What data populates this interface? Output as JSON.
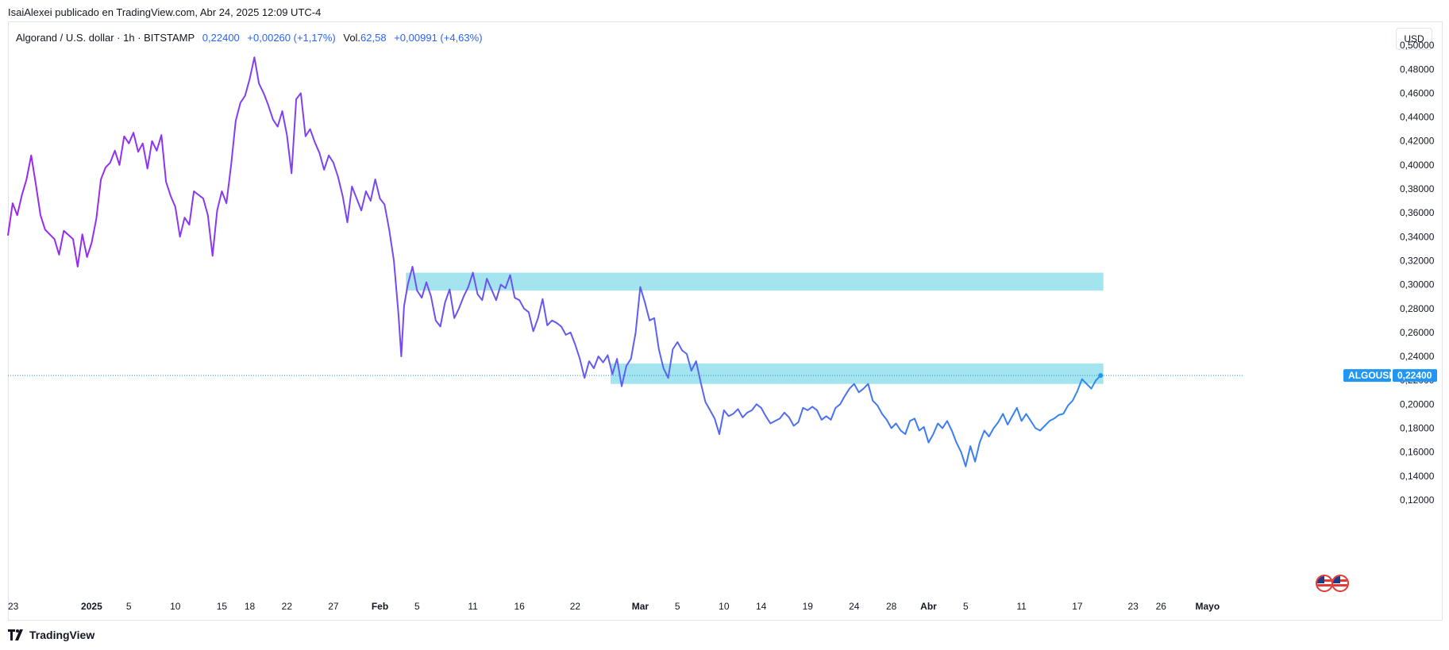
{
  "caption": "IsaiAlexei publicado en TradingView.com, Abr 24, 2025 12:09 UTC-4",
  "legend": {
    "symbol": "Algorand / U.S. dollar · 1h · BITSTAMP",
    "last": "0,22400",
    "change": "+0,00260 (+1,17%)",
    "vol_label": "Vol.",
    "vol_value": "62,58",
    "vol_change": "+0,00991 (+4,63%)"
  },
  "currency_button": "USD",
  "price_tag": {
    "symbol": "ALGOUSD",
    "value": "0,22400"
  },
  "branding": "TradingView",
  "colors": {
    "zone": "#a3e4ef",
    "line_start": "#9c27f0",
    "line_end": "#2196f3",
    "tag": "#2196f3"
  },
  "chart_data": {
    "type": "line",
    "symbol": "ALGOUSD",
    "interval": "1h",
    "ylim": [
      0.11,
      0.52
    ],
    "y_ticks": [
      0.12,
      0.14,
      0.16,
      0.18,
      0.2,
      0.22,
      0.24,
      0.26,
      0.28,
      0.3,
      0.32,
      0.34,
      0.36,
      0.38,
      0.4,
      0.42,
      0.44,
      0.46,
      0.48,
      0.5
    ],
    "y_tick_labels": [
      "0,12000",
      "0,14000",
      "0,16000",
      "0,18000",
      "0,20000",
      "0,22000",
      "0,24000",
      "0,26000",
      "0,28000",
      "0,30000",
      "0,32000",
      "0,34000",
      "0,36000",
      "0,38000",
      "0,40000",
      "0,42000",
      "0,44000",
      "0,46000",
      "0,48000",
      "0,50000"
    ],
    "x_tick_labels": [
      {
        "t": 0,
        "label": "23"
      },
      {
        "t": 9,
        "label": "2025",
        "bold": true
      },
      {
        "t": 13,
        "label": "5"
      },
      {
        "t": 18,
        "label": "10"
      },
      {
        "t": 23,
        "label": "15"
      },
      {
        "t": 26,
        "label": "18"
      },
      {
        "t": 30,
        "label": "22"
      },
      {
        "t": 35,
        "label": "27"
      },
      {
        "t": 40,
        "label": "Feb",
        "bold": true
      },
      {
        "t": 44,
        "label": "5"
      },
      {
        "t": 50,
        "label": "11"
      },
      {
        "t": 55,
        "label": "16"
      },
      {
        "t": 61,
        "label": "22"
      },
      {
        "t": 68,
        "label": "Mar",
        "bold": true
      },
      {
        "t": 72,
        "label": "5"
      },
      {
        "t": 77,
        "label": "10"
      },
      {
        "t": 81,
        "label": "14"
      },
      {
        "t": 86,
        "label": "19"
      },
      {
        "t": 91,
        "label": "24"
      },
      {
        "t": 95,
        "label": "28"
      },
      {
        "t": 99,
        "label": "Abr",
        "bold": true
      },
      {
        "t": 103,
        "label": "5"
      },
      {
        "t": 109,
        "label": "11"
      },
      {
        "t": 115,
        "label": "17"
      },
      {
        "t": 121,
        "label": "23"
      },
      {
        "t": 124,
        "label": "26"
      },
      {
        "t": 129,
        "label": "Mayo",
        "bold": true
      }
    ],
    "x_range": [
      0,
      132
    ],
    "series": [
      {
        "points": [
          [
            0,
            0.341
          ],
          [
            0.5,
            0.368
          ],
          [
            1,
            0.358
          ],
          [
            1.5,
            0.375
          ],
          [
            2,
            0.388
          ],
          [
            2.5,
            0.408
          ],
          [
            3,
            0.384
          ],
          [
            3.5,
            0.358
          ],
          [
            4,
            0.346
          ],
          [
            5,
            0.338
          ],
          [
            5.5,
            0.325
          ],
          [
            6,
            0.345
          ],
          [
            7,
            0.338
          ],
          [
            7.5,
            0.315
          ],
          [
            8,
            0.342
          ],
          [
            8.5,
            0.323
          ],
          [
            9,
            0.335
          ],
          [
            9.5,
            0.355
          ],
          [
            10,
            0.388
          ],
          [
            10.5,
            0.398
          ],
          [
            11,
            0.402
          ],
          [
            11.5,
            0.412
          ],
          [
            12,
            0.4
          ],
          [
            12.5,
            0.424
          ],
          [
            13,
            0.418
          ],
          [
            13.5,
            0.427
          ],
          [
            14,
            0.411
          ],
          [
            14.5,
            0.418
          ],
          [
            15,
            0.397
          ],
          [
            15.5,
            0.42
          ],
          [
            16,
            0.412
          ],
          [
            16.5,
            0.425
          ],
          [
            17,
            0.386
          ],
          [
            17.5,
            0.374
          ],
          [
            18,
            0.365
          ],
          [
            18.5,
            0.34
          ],
          [
            19,
            0.356
          ],
          [
            19.5,
            0.35
          ],
          [
            20,
            0.378
          ],
          [
            21,
            0.372
          ],
          [
            21.5,
            0.358
          ],
          [
            22,
            0.324
          ],
          [
            22.5,
            0.362
          ],
          [
            23,
            0.378
          ],
          [
            23.5,
            0.368
          ],
          [
            24,
            0.4
          ],
          [
            24.5,
            0.437
          ],
          [
            25,
            0.452
          ],
          [
            25.5,
            0.458
          ],
          [
            26,
            0.472
          ],
          [
            26.5,
            0.49
          ],
          [
            27,
            0.468
          ],
          [
            27.5,
            0.46
          ],
          [
            28,
            0.45
          ],
          [
            28.5,
            0.438
          ],
          [
            29,
            0.432
          ],
          [
            29.5,
            0.445
          ],
          [
            30,
            0.425
          ],
          [
            30.5,
            0.393
          ],
          [
            31,
            0.455
          ],
          [
            31.5,
            0.46
          ],
          [
            32,
            0.424
          ],
          [
            32.5,
            0.43
          ],
          [
            33,
            0.419
          ],
          [
            33.5,
            0.41
          ],
          [
            34,
            0.396
          ],
          [
            34.5,
            0.408
          ],
          [
            35,
            0.402
          ],
          [
            35.5,
            0.39
          ],
          [
            36,
            0.374
          ],
          [
            36.5,
            0.352
          ],
          [
            37,
            0.382
          ],
          [
            37.5,
            0.372
          ],
          [
            38,
            0.362
          ],
          [
            38.5,
            0.378
          ],
          [
            39,
            0.37
          ],
          [
            39.5,
            0.388
          ],
          [
            40,
            0.372
          ],
          [
            40.5,
            0.367
          ],
          [
            41,
            0.346
          ],
          [
            41.5,
            0.32
          ],
          [
            42,
            0.275
          ],
          [
            42.3,
            0.24
          ],
          [
            42.6,
            0.282
          ],
          [
            43,
            0.3
          ],
          [
            43.5,
            0.315
          ],
          [
            44,
            0.295
          ],
          [
            44.5,
            0.289
          ],
          [
            45,
            0.302
          ],
          [
            45.5,
            0.29
          ],
          [
            46,
            0.27
          ],
          [
            46.5,
            0.265
          ],
          [
            47,
            0.285
          ],
          [
            47.5,
            0.296
          ],
          [
            48,
            0.272
          ],
          [
            48.5,
            0.28
          ],
          [
            49,
            0.29
          ],
          [
            49.5,
            0.298
          ],
          [
            50,
            0.31
          ],
          [
            50.5,
            0.292
          ],
          [
            51,
            0.287
          ],
          [
            51.5,
            0.305
          ],
          [
            52,
            0.296
          ],
          [
            52.5,
            0.287
          ],
          [
            53,
            0.3
          ],
          [
            53.5,
            0.297
          ],
          [
            54,
            0.308
          ],
          [
            54.5,
            0.289
          ],
          [
            55,
            0.287
          ],
          [
            55.5,
            0.28
          ],
          [
            56,
            0.277
          ],
          [
            56.5,
            0.261
          ],
          [
            57,
            0.272
          ],
          [
            57.5,
            0.288
          ],
          [
            58,
            0.266
          ],
          [
            58.5,
            0.27
          ],
          [
            59,
            0.268
          ],
          [
            59.5,
            0.265
          ],
          [
            60,
            0.258
          ],
          [
            60.5,
            0.26
          ],
          [
            61,
            0.25
          ],
          [
            61.5,
            0.238
          ],
          [
            62,
            0.222
          ],
          [
            62.5,
            0.236
          ],
          [
            63,
            0.23
          ],
          [
            63.5,
            0.24
          ],
          [
            64,
            0.235
          ],
          [
            64.5,
            0.241
          ],
          [
            65,
            0.225
          ],
          [
            65.5,
            0.238
          ],
          [
            66,
            0.215
          ],
          [
            66.5,
            0.232
          ],
          [
            67,
            0.238
          ],
          [
            67.5,
            0.26
          ],
          [
            68,
            0.298
          ],
          [
            68.5,
            0.285
          ],
          [
            69,
            0.27
          ],
          [
            69.5,
            0.272
          ],
          [
            70,
            0.246
          ],
          [
            70.5,
            0.23
          ],
          [
            71,
            0.222
          ],
          [
            71.5,
            0.246
          ],
          [
            72,
            0.252
          ],
          [
            72.5,
            0.245
          ],
          [
            73,
            0.242
          ],
          [
            73.5,
            0.228
          ],
          [
            74,
            0.236
          ],
          [
            74.5,
            0.218
          ],
          [
            75,
            0.202
          ],
          [
            75.5,
            0.195
          ],
          [
            76,
            0.188
          ],
          [
            76.5,
            0.175
          ],
          [
            77,
            0.195
          ],
          [
            77.5,
            0.19
          ],
          [
            78,
            0.192
          ],
          [
            78.5,
            0.196
          ],
          [
            79,
            0.189
          ],
          [
            79.5,
            0.193
          ],
          [
            80,
            0.195
          ],
          [
            80.5,
            0.2
          ],
          [
            81,
            0.197
          ],
          [
            81.5,
            0.19
          ],
          [
            82,
            0.184
          ],
          [
            82.5,
            0.186
          ],
          [
            83,
            0.188
          ],
          [
            83.5,
            0.193
          ],
          [
            84,
            0.189
          ],
          [
            84.5,
            0.182
          ],
          [
            85,
            0.185
          ],
          [
            85.5,
            0.197
          ],
          [
            86,
            0.195
          ],
          [
            86.5,
            0.198
          ],
          [
            87,
            0.195
          ],
          [
            87.5,
            0.187
          ],
          [
            88,
            0.19
          ],
          [
            88.5,
            0.187
          ],
          [
            89,
            0.197
          ],
          [
            89.5,
            0.2
          ],
          [
            90,
            0.207
          ],
          [
            90.5,
            0.213
          ],
          [
            91,
            0.217
          ],
          [
            91.5,
            0.21
          ],
          [
            92,
            0.213
          ],
          [
            92.5,
            0.217
          ],
          [
            93,
            0.203
          ],
          [
            93.5,
            0.199
          ],
          [
            94,
            0.192
          ],
          [
            94.5,
            0.187
          ],
          [
            95,
            0.18
          ],
          [
            95.5,
            0.184
          ],
          [
            96,
            0.178
          ],
          [
            96.5,
            0.175
          ],
          [
            97,
            0.186
          ],
          [
            97.5,
            0.188
          ],
          [
            98,
            0.178
          ],
          [
            98.5,
            0.181
          ],
          [
            99,
            0.168
          ],
          [
            99.5,
            0.175
          ],
          [
            100,
            0.184
          ],
          [
            100.5,
            0.18
          ],
          [
            101,
            0.186
          ],
          [
            101.5,
            0.178
          ],
          [
            102,
            0.168
          ],
          [
            102.5,
            0.16
          ],
          [
            103,
            0.148
          ],
          [
            103.5,
            0.165
          ],
          [
            104,
            0.152
          ],
          [
            104.5,
            0.168
          ],
          [
            105,
            0.178
          ],
          [
            105.5,
            0.173
          ],
          [
            106,
            0.18
          ],
          [
            106.5,
            0.185
          ],
          [
            107,
            0.192
          ],
          [
            107.5,
            0.183
          ],
          [
            108,
            0.19
          ],
          [
            108.5,
            0.197
          ],
          [
            109,
            0.186
          ],
          [
            109.5,
            0.192
          ],
          [
            110,
            0.186
          ],
          [
            110.5,
            0.18
          ],
          [
            111,
            0.178
          ],
          [
            111.5,
            0.182
          ],
          [
            112,
            0.186
          ],
          [
            112.5,
            0.188
          ],
          [
            113,
            0.191
          ],
          [
            113.5,
            0.192
          ],
          [
            114,
            0.199
          ],
          [
            114.5,
            0.203
          ],
          [
            115,
            0.211
          ],
          [
            115.5,
            0.221
          ],
          [
            116,
            0.217
          ],
          [
            116.5,
            0.213
          ],
          [
            117,
            0.22
          ],
          [
            117.5,
            0.224
          ]
        ]
      }
    ],
    "zones": [
      {
        "x0": 42.8,
        "x1": 117.8,
        "y0": 0.295,
        "y1": 0.31
      },
      {
        "x0": 64.8,
        "x1": 117.8,
        "y0": 0.217,
        "y1": 0.234
      }
    ],
    "last_price": 0.224
  }
}
